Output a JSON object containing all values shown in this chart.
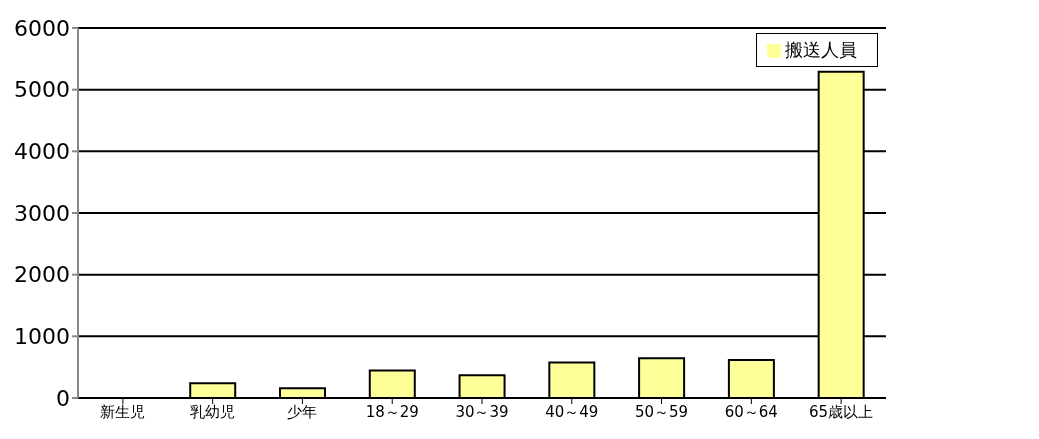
{
  "chart_data": {
    "type": "bar",
    "categories": [
      "新生児",
      "乳幼児",
      "少年",
      "18～29",
      "30～39",
      "40～49",
      "50～59",
      "60～64",
      "65歳以上"
    ],
    "series": [
      {
        "name": "搬送人員",
        "color": "#ffff99",
        "values": [
          0,
          240,
          160,
          445,
          370,
          575,
          645,
          615,
          5290
        ]
      }
    ],
    "ylim": [
      0,
      6000
    ],
    "yticks": [
      0,
      1000,
      2000,
      3000,
      4000,
      5000,
      6000
    ],
    "grid": "y",
    "legend": "top right"
  }
}
